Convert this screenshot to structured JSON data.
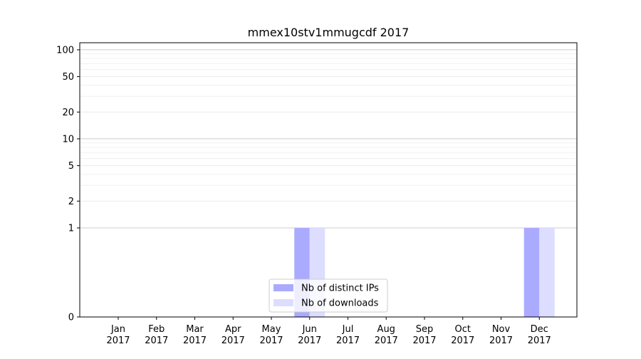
{
  "chart_data": {
    "type": "bar",
    "title": "mmex10stv1mmugcdf 2017",
    "xlabel": "",
    "ylabel": "",
    "y_scale": "symlog",
    "ylim": [
      0,
      120
    ],
    "grid": true,
    "legend_position": "bottom-center",
    "categories": [
      {
        "month": "Jan",
        "year": "2017"
      },
      {
        "month": "Feb",
        "year": "2017"
      },
      {
        "month": "Mar",
        "year": "2017"
      },
      {
        "month": "Apr",
        "year": "2017"
      },
      {
        "month": "May",
        "year": "2017"
      },
      {
        "month": "Jun",
        "year": "2017"
      },
      {
        "month": "Jul",
        "year": "2017"
      },
      {
        "month": "Aug",
        "year": "2017"
      },
      {
        "month": "Sep",
        "year": "2017"
      },
      {
        "month": "Oct",
        "year": "2017"
      },
      {
        "month": "Nov",
        "year": "2017"
      },
      {
        "month": "Dec",
        "year": "2017"
      }
    ],
    "y_ticks": [
      "0",
      "1",
      "2",
      "5",
      "10",
      "20",
      "50",
      "100"
    ],
    "series": [
      {
        "name": "Nb of distinct IPs",
        "color": "#aaaaff",
        "values": [
          0,
          0,
          0,
          0,
          0,
          1,
          0,
          0,
          0,
          0,
          0,
          1
        ]
      },
      {
        "name": "Nb of downloads",
        "color": "#ddddff",
        "values": [
          0,
          0,
          0,
          0,
          0,
          1,
          0,
          0,
          0,
          0,
          0,
          1
        ]
      }
    ]
  }
}
